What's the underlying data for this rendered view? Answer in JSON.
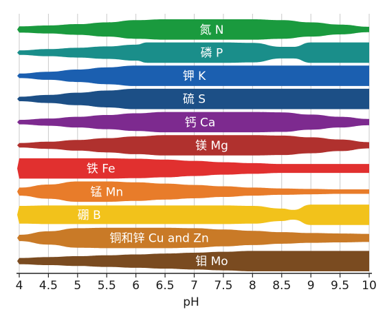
{
  "chart_data": {
    "type": "area",
    "xlabel": "pH",
    "xlim": [
      4,
      10
    ],
    "ticks": [
      "4",
      "4.5",
      "5",
      "5.5",
      "6",
      "6.5",
      "7",
      "7.5",
      "8",
      "8.5",
      "9",
      "9.5",
      "10"
    ],
    "tick_values": [
      4,
      4.5,
      5,
      5.5,
      6,
      6.5,
      7,
      7.5,
      8,
      8.5,
      9,
      9.5,
      10
    ],
    "grid": true,
    "series": [
      {
        "name": "氮 N",
        "color": "#1a9a3e",
        "label_x": 7.3,
        "availability": [
          [
            4,
            0.2
          ],
          [
            4.5,
            0.3
          ],
          [
            5,
            0.45
          ],
          [
            5.5,
            0.65
          ],
          [
            6,
            0.9
          ],
          [
            6.5,
            1.0
          ],
          [
            7,
            1.0
          ],
          [
            7.5,
            1.0
          ],
          [
            8,
            1.0
          ],
          [
            8.5,
            0.9
          ],
          [
            9,
            0.65
          ],
          [
            9.5,
            0.4
          ],
          [
            10,
            0.15
          ]
        ]
      },
      {
        "name": "磷 P",
        "color": "#1a8e8a",
        "label_x": 7.3,
        "availability": [
          [
            4,
            0.1
          ],
          [
            4.5,
            0.25
          ],
          [
            5,
            0.4
          ],
          [
            5.5,
            0.55
          ],
          [
            6,
            0.75
          ],
          [
            6.2,
            1.0
          ],
          [
            7,
            1.0
          ],
          [
            7.5,
            1.0
          ],
          [
            8,
            0.95
          ],
          [
            8.5,
            0.5
          ],
          [
            8.7,
            0.5
          ],
          [
            9,
            1.0
          ],
          [
            9.5,
            1.0
          ],
          [
            10,
            1.0
          ]
        ]
      },
      {
        "name": "钾 K",
        "color": "#1b5fb0",
        "label_x": 7.0,
        "availability": [
          [
            4,
            0.1
          ],
          [
            4.5,
            0.3
          ],
          [
            5,
            0.55
          ],
          [
            5.5,
            0.8
          ],
          [
            6,
            1.0
          ],
          [
            6.5,
            1.0
          ],
          [
            7,
            1.0
          ],
          [
            7.5,
            1.0
          ],
          [
            8,
            1.0
          ],
          [
            8.5,
            1.0
          ],
          [
            9,
            1.0
          ],
          [
            9.5,
            1.0
          ],
          [
            10,
            1.0
          ]
        ]
      },
      {
        "name": "硫 S",
        "color": "#1c4f86",
        "label_x": 7.0,
        "availability": [
          [
            4,
            0.1
          ],
          [
            4.5,
            0.3
          ],
          [
            5,
            0.55
          ],
          [
            5.5,
            0.8
          ],
          [
            6,
            1.0
          ],
          [
            6.5,
            1.0
          ],
          [
            7,
            1.0
          ],
          [
            7.5,
            1.0
          ],
          [
            8,
            1.0
          ],
          [
            8.5,
            1.0
          ],
          [
            9,
            1.0
          ],
          [
            9.5,
            1.0
          ],
          [
            10,
            1.0
          ]
        ]
      },
      {
        "name": "钙 Ca",
        "color": "#7d2a8f",
        "label_x": 7.1,
        "availability": [
          [
            4,
            0.1
          ],
          [
            4.5,
            0.25
          ],
          [
            5,
            0.45
          ],
          [
            5.5,
            0.65
          ],
          [
            6,
            0.85
          ],
          [
            6.5,
            1.0
          ],
          [
            7,
            1.0
          ],
          [
            7.5,
            1.0
          ],
          [
            8,
            1.0
          ],
          [
            8.5,
            0.95
          ],
          [
            9,
            0.7
          ],
          [
            9.5,
            0.45
          ],
          [
            10,
            0.2
          ]
        ]
      },
      {
        "name": "镁 Mg",
        "color": "#b0312e",
        "label_x": 7.3,
        "availability": [
          [
            4,
            0.1
          ],
          [
            4.5,
            0.25
          ],
          [
            5,
            0.45
          ],
          [
            5.5,
            0.65
          ],
          [
            6,
            0.85
          ],
          [
            6.5,
            1.0
          ],
          [
            7,
            1.0
          ],
          [
            7.5,
            1.0
          ],
          [
            8,
            1.0
          ],
          [
            8.5,
            0.95
          ],
          [
            9,
            0.75
          ],
          [
            9.5,
            0.5
          ],
          [
            10,
            0.2
          ]
        ]
      },
      {
        "name": "铁 Fe",
        "color": "#e1302f",
        "label_x": 5.4,
        "availability": [
          [
            4,
            1.0
          ],
          [
            4.5,
            1.0
          ],
          [
            5,
            1.0
          ],
          [
            5.5,
            1.0
          ],
          [
            6,
            0.95
          ],
          [
            6.5,
            0.85
          ],
          [
            7,
            0.7
          ],
          [
            7.5,
            0.55
          ],
          [
            8,
            0.45
          ],
          [
            8.5,
            0.35
          ],
          [
            9,
            0.35
          ],
          [
            9.5,
            0.35
          ],
          [
            10,
            0.35
          ]
        ]
      },
      {
        "name": "锰 Mn",
        "color": "#e87c2a",
        "label_x": 5.5,
        "availability": [
          [
            4,
            0.3
          ],
          [
            4.5,
            0.65
          ],
          [
            5,
            1.0
          ],
          [
            5.5,
            1.0
          ],
          [
            6,
            0.9
          ],
          [
            6.5,
            0.75
          ],
          [
            7,
            0.6
          ],
          [
            7.5,
            0.45
          ],
          [
            8,
            0.3
          ],
          [
            8.5,
            0.2
          ],
          [
            9,
            0.15
          ],
          [
            9.5,
            0.1
          ],
          [
            10,
            0.1
          ]
        ]
      },
      {
        "name": "硼 B",
        "color": "#f2c21b",
        "label_x": 5.2,
        "availability": [
          [
            4,
            0.85
          ],
          [
            4.5,
            0.9
          ],
          [
            5,
            0.9
          ],
          [
            5.5,
            0.9
          ],
          [
            6,
            0.9
          ],
          [
            6.5,
            0.9
          ],
          [
            7,
            0.9
          ],
          [
            7.5,
            0.9
          ],
          [
            8,
            0.85
          ],
          [
            8.5,
            0.55
          ],
          [
            8.7,
            0.4
          ],
          [
            9,
            1.0
          ],
          [
            9.5,
            1.0
          ],
          [
            10,
            1.0
          ]
        ]
      },
      {
        "name": "铜和锌 Cu and Zn",
        "color": "#c97a27",
        "label_x": 6.4,
        "availability": [
          [
            4,
            0.2
          ],
          [
            4.5,
            0.6
          ],
          [
            5,
            0.95
          ],
          [
            5.5,
            1.0
          ],
          [
            6,
            1.0
          ],
          [
            6.5,
            1.0
          ],
          [
            7,
            0.95
          ],
          [
            7.5,
            0.8
          ],
          [
            8,
            0.65
          ],
          [
            8.5,
            0.5
          ],
          [
            9,
            0.4
          ],
          [
            9.5,
            0.35
          ],
          [
            10,
            0.3
          ]
        ]
      },
      {
        "name": "钼 Mo",
        "color": "#7a4b20",
        "label_x": 7.3,
        "availability": [
          [
            4,
            0.2
          ],
          [
            4.5,
            0.3
          ],
          [
            5,
            0.4
          ],
          [
            5.5,
            0.5
          ],
          [
            6,
            0.6
          ],
          [
            6.5,
            0.7
          ],
          [
            7,
            0.8
          ],
          [
            7.5,
            0.9
          ],
          [
            8,
            1.0
          ],
          [
            8.5,
            1.0
          ],
          [
            9,
            1.0
          ],
          [
            9.5,
            1.0
          ],
          [
            10,
            1.0
          ]
        ]
      }
    ]
  }
}
